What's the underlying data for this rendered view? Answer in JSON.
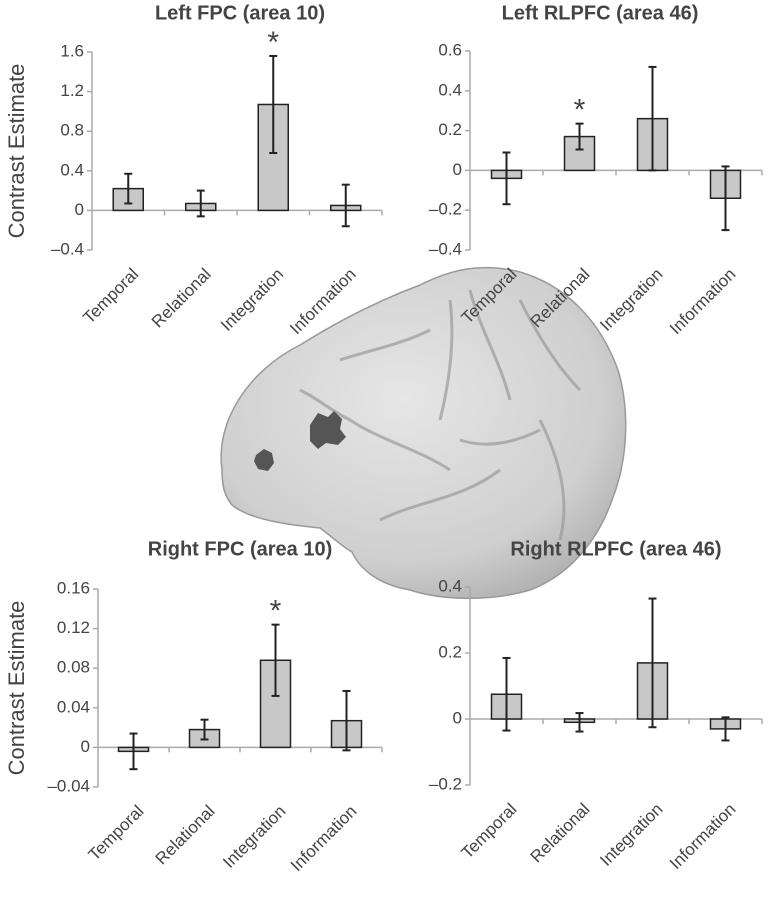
{
  "chart_data": [
    {
      "type": "bar",
      "title": "Left FPC (area 10)",
      "ylabel": "Contrast Estimate",
      "categories": [
        "Temporal",
        "Relational",
        "Integration",
        "Information"
      ],
      "values": [
        0.22,
        0.07,
        1.07,
        0.05
      ],
      "errors": [
        0.15,
        0.13,
        0.49,
        0.21
      ],
      "significance": [
        null,
        null,
        "*",
        null
      ],
      "color": "#c8c8c8",
      "ylim": [
        -0.4,
        1.6
      ],
      "yticks": [
        {
          "value": -0.4,
          "label": "–0.4"
        },
        0,
        0.4,
        0.8,
        1.2,
        1.6
      ]
    },
    {
      "type": "bar",
      "title": "Left RLPFC (area 46)",
      "categories": [
        "Temporal",
        "Relational",
        "Integration",
        "Information"
      ],
      "values": [
        -0.04,
        0.17,
        0.26,
        -0.14
      ],
      "errors": [
        0.13,
        0.065,
        0.26,
        0.16
      ],
      "significance": [
        null,
        "*",
        null,
        null
      ],
      "color": "#c8c8c8",
      "ylim": [
        -0.4,
        0.6
      ],
      "yticks": [
        {
          "value": -0.4,
          "label": "–0.4"
        },
        {
          "value": -0.2,
          "label": "–0.2"
        },
        0,
        0.2,
        0.4,
        0.6
      ]
    },
    {
      "type": "bar",
      "title": "Right FPC (area 10)",
      "ylabel": "Contrast Estimate",
      "categories": [
        "Temporal",
        "Relational",
        "Integration",
        "Information"
      ],
      "values": [
        -0.004,
        0.018,
        0.088,
        0.027
      ],
      "errors": [
        0.018,
        0.01,
        0.036,
        0.03
      ],
      "significance": [
        null,
        null,
        "*",
        null
      ],
      "color": "#c8c8c8",
      "ylim": [
        -0.04,
        0.16
      ],
      "yticks": [
        {
          "value": -0.04,
          "label": "–0.04"
        },
        0,
        0.04,
        0.08,
        0.12,
        0.16
      ]
    },
    {
      "type": "bar",
      "title": "Right RLPFC (area 46)",
      "categories": [
        "Temporal",
        "Relational",
        "Integration",
        "Information"
      ],
      "values": [
        0.075,
        -0.01,
        0.17,
        -0.03
      ],
      "errors": [
        0.11,
        0.028,
        0.195,
        0.035
      ],
      "color": "#c8c8c8",
      "ylim": [
        -0.2,
        0.4
      ],
      "yticks": [
        {
          "value": -0.2,
          "label": "–0.2"
        },
        0,
        0.2,
        0.4
      ]
    }
  ]
}
